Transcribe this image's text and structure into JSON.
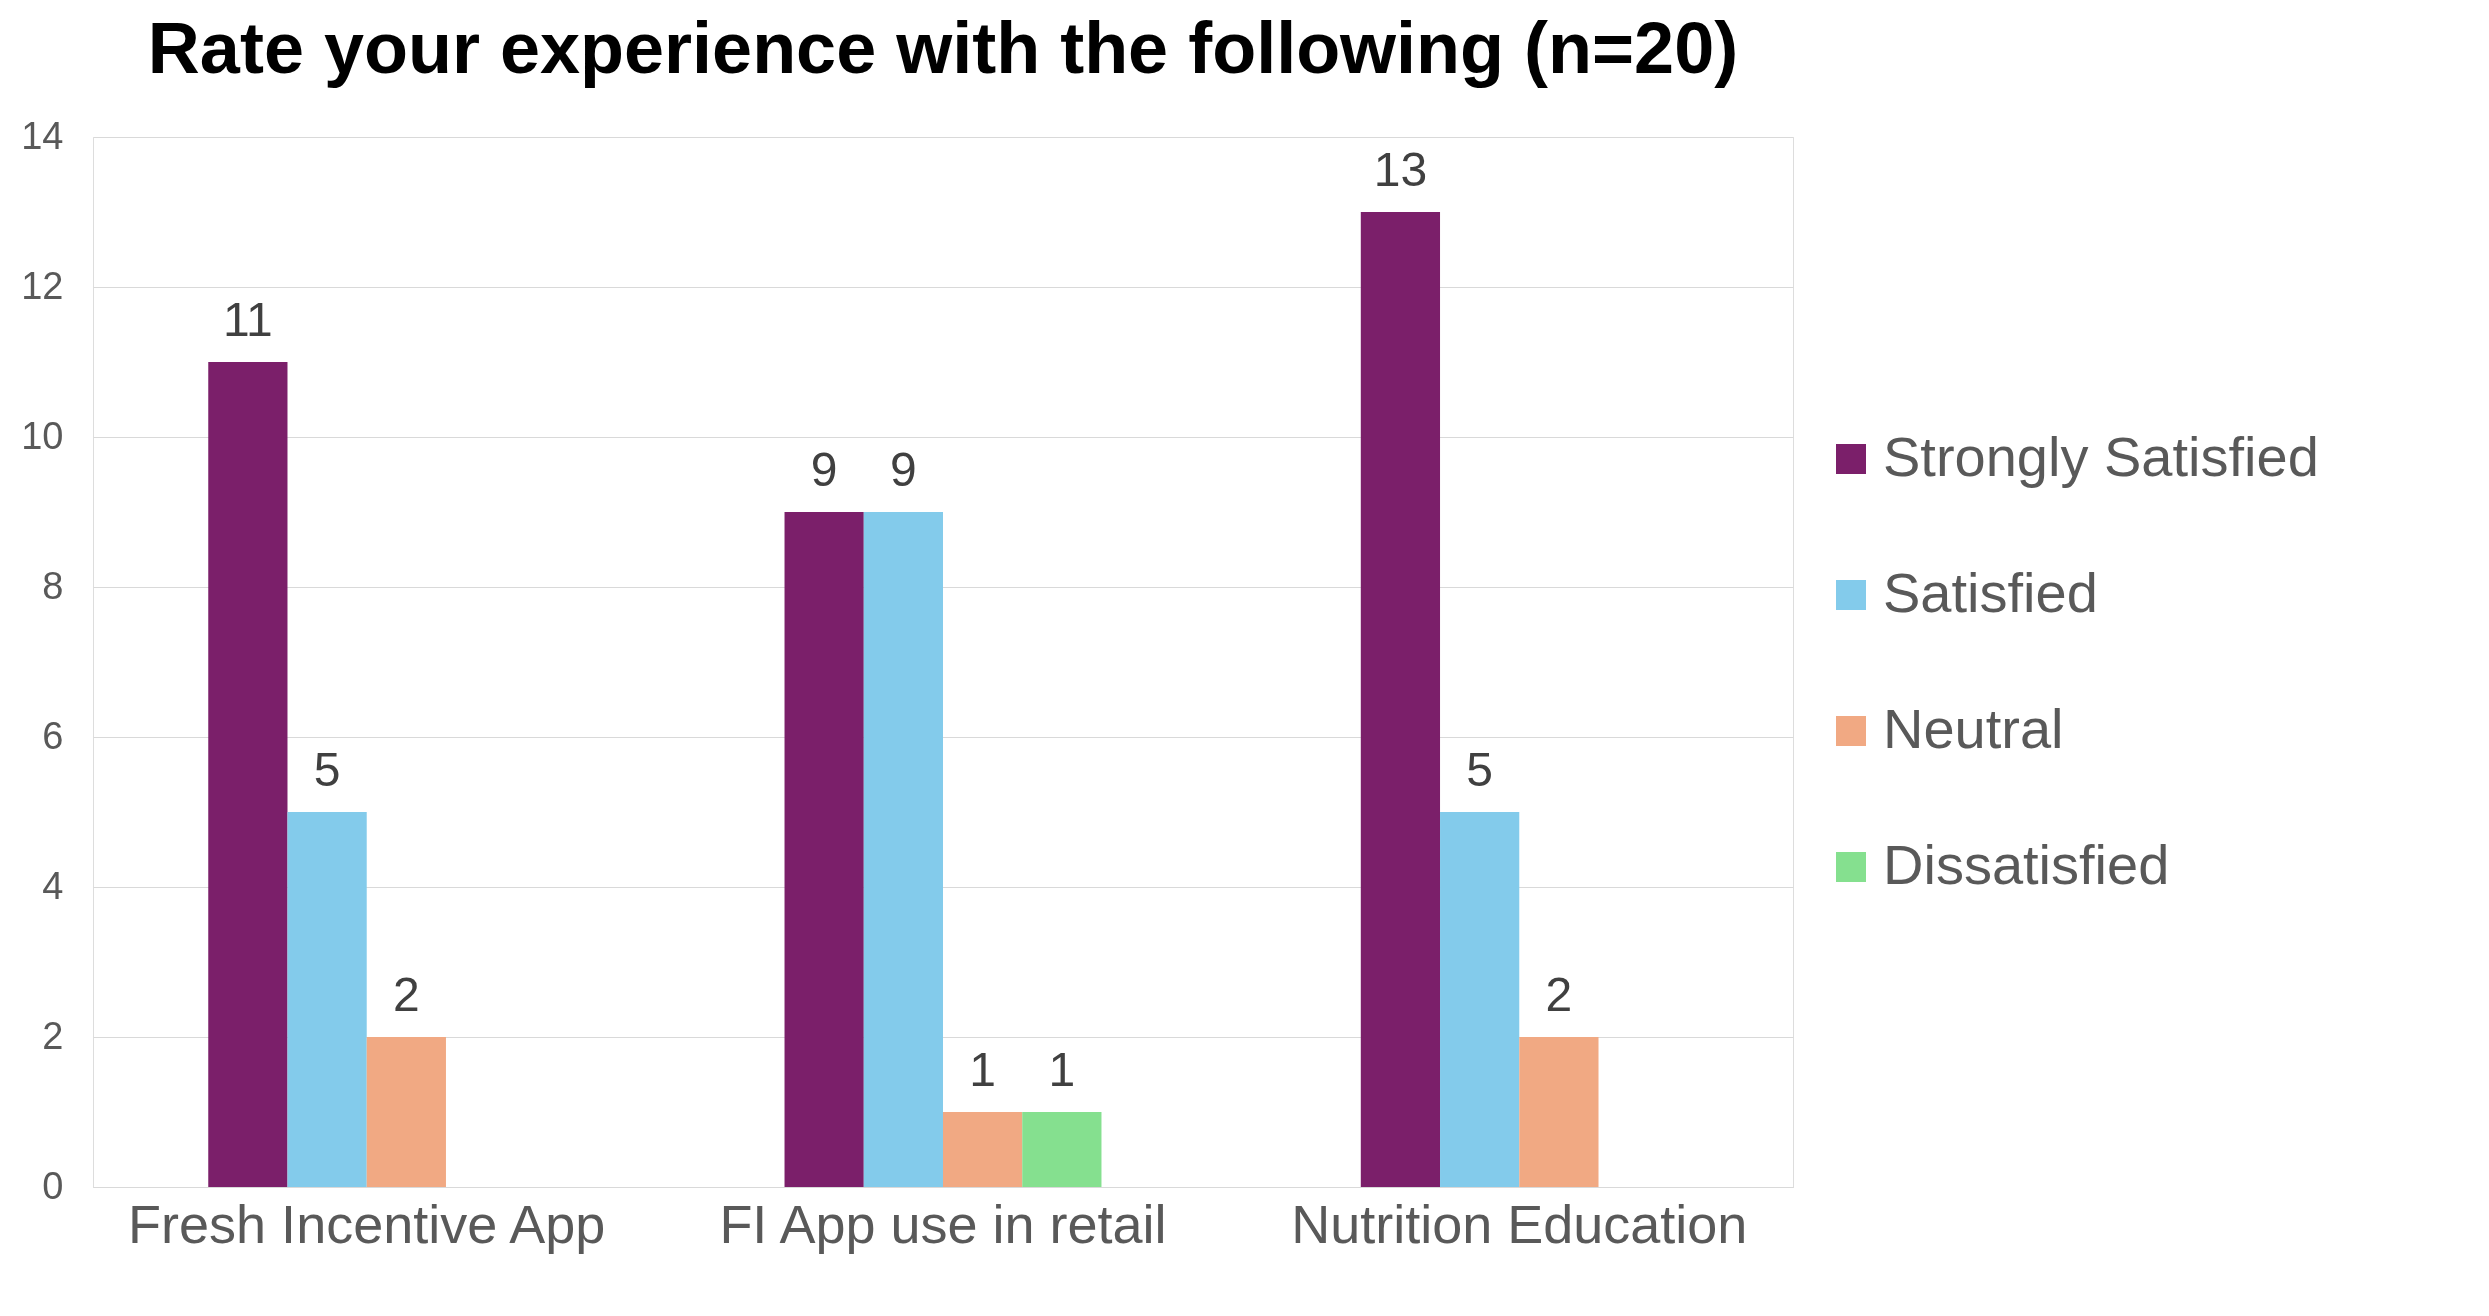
{
  "chart_data": {
    "type": "bar",
    "title": "Rate your experience with the following (n=20)",
    "categories": [
      "Fresh Incentive App",
      "FI App use in retail",
      "Nutrition Education"
    ],
    "series": [
      {
        "name": "Strongly Satisfied",
        "color": "#7b1f6a",
        "values": [
          11,
          9,
          13
        ]
      },
      {
        "name": "Satisfied",
        "color": "#83cbeb",
        "values": [
          5,
          9,
          5
        ]
      },
      {
        "name": "Neutral",
        "color": "#f1a983",
        "values": [
          2,
          1,
          2
        ]
      },
      {
        "name": "Dissatisfied",
        "color": "#85e08f",
        "values": [
          null,
          1,
          null
        ]
      }
    ],
    "ylim": [
      0,
      14
    ],
    "yticks": [
      0,
      2,
      4,
      6,
      8,
      10,
      12,
      14
    ],
    "grid": "y",
    "legend": "right",
    "data_labels": true
  }
}
